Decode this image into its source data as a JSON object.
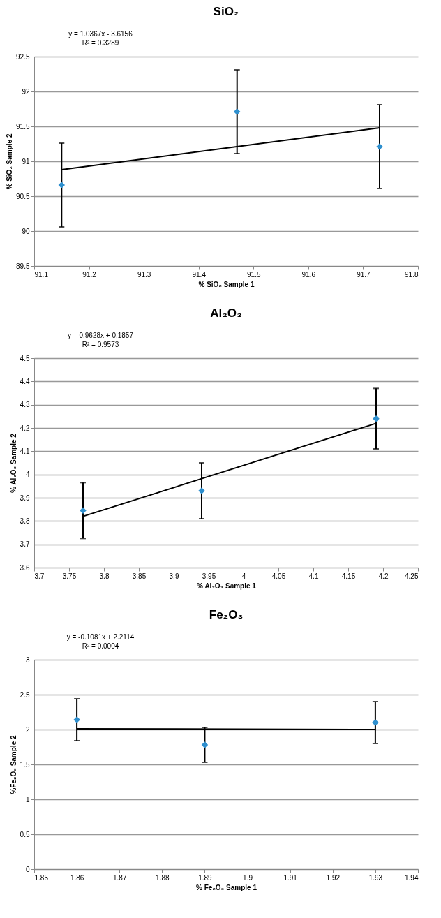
{
  "chart_data": [
    {
      "type": "scatter",
      "title": "SiO₂",
      "xlabel": "% SiO₂ Sample 1",
      "ylabel": "% SiO₂ Sample 2",
      "annotations": [
        "y = 1.0367x - 3.6156",
        "R² = 0.3289"
      ],
      "xlim": [
        91.1,
        91.8
      ],
      "xticks": [
        91.1,
        91.2,
        91.3,
        91.4,
        91.5,
        91.6,
        91.7,
        91.8
      ],
      "ylim": [
        89.5,
        92.5
      ],
      "yticks": [
        89.5,
        90,
        90.5,
        91,
        91.5,
        92,
        92.5
      ],
      "grid": "y",
      "marker": "diamond",
      "series": [
        {
          "color": "#2e8fce",
          "x": [
            91.15,
            91.47,
            91.73
          ],
          "values": [
            90.66,
            91.71,
            91.21
          ],
          "errors": [
            0.6,
            0.6,
            0.6
          ]
        },
        {
          "type": "line",
          "marker": "none",
          "color": "#000000",
          "x": [
            91.15,
            91.73
          ],
          "values": [
            90.88,
            91.48
          ]
        }
      ]
    },
    {
      "type": "scatter",
      "title": "Al₂O₃",
      "xlabel": "% Al₂O₃ Sample 1",
      "ylabel": "% Al₂O₃ Sample 2",
      "annotations": [
        "y = 0.9628x + 0.1857",
        "R² = 0.9573"
      ],
      "xlim": [
        3.7,
        4.25
      ],
      "xticks": [
        3.7,
        3.75,
        3.8,
        3.85,
        3.9,
        3.95,
        4,
        4.05,
        4.1,
        4.15,
        4.2,
        4.25
      ],
      "ylim": [
        3.6,
        4.5
      ],
      "yticks": [
        3.6,
        3.7,
        3.8,
        3.9,
        4,
        4.1,
        4.2,
        4.3,
        4.4,
        4.5
      ],
      "grid": "y",
      "marker": "diamond",
      "series": [
        {
          "color": "#2e8fce",
          "x": [
            3.77,
            3.94,
            4.19
          ],
          "values": [
            3.845,
            3.93,
            4.24
          ],
          "errors": [
            0.12,
            0.12,
            0.13
          ]
        },
        {
          "type": "line",
          "marker": "none",
          "color": "#000000",
          "x": [
            3.77,
            4.19
          ],
          "values": [
            3.82,
            4.22
          ]
        }
      ]
    },
    {
      "type": "scatter",
      "title": "Fe₂O₃",
      "xlabel": "% Fe₂O₃ Sample 1",
      "ylabel": "%Fe₂O₃ Sample 2",
      "annotations": [
        "y = -0.1081x + 2.2114",
        "R² = 0.0004"
      ],
      "xlim": [
        1.85,
        1.94
      ],
      "xticks": [
        1.85,
        1.86,
        1.87,
        1.88,
        1.89,
        1.9,
        1.91,
        1.92,
        1.93,
        1.94
      ],
      "ylim": [
        0,
        3
      ],
      "yticks": [
        0,
        0.5,
        1,
        1.5,
        2,
        2.5,
        3
      ],
      "grid": "y",
      "marker": "diamond",
      "series": [
        {
          "color": "#2e8fce",
          "x": [
            1.86,
            1.89,
            1.93
          ],
          "values": [
            2.14,
            1.78,
            2.1
          ],
          "errors": [
            0.3,
            0.25,
            0.3
          ]
        },
        {
          "type": "line",
          "marker": "none",
          "color": "#000000",
          "x": [
            1.86,
            1.93
          ],
          "values": [
            2.01,
            2.0
          ]
        }
      ]
    }
  ]
}
